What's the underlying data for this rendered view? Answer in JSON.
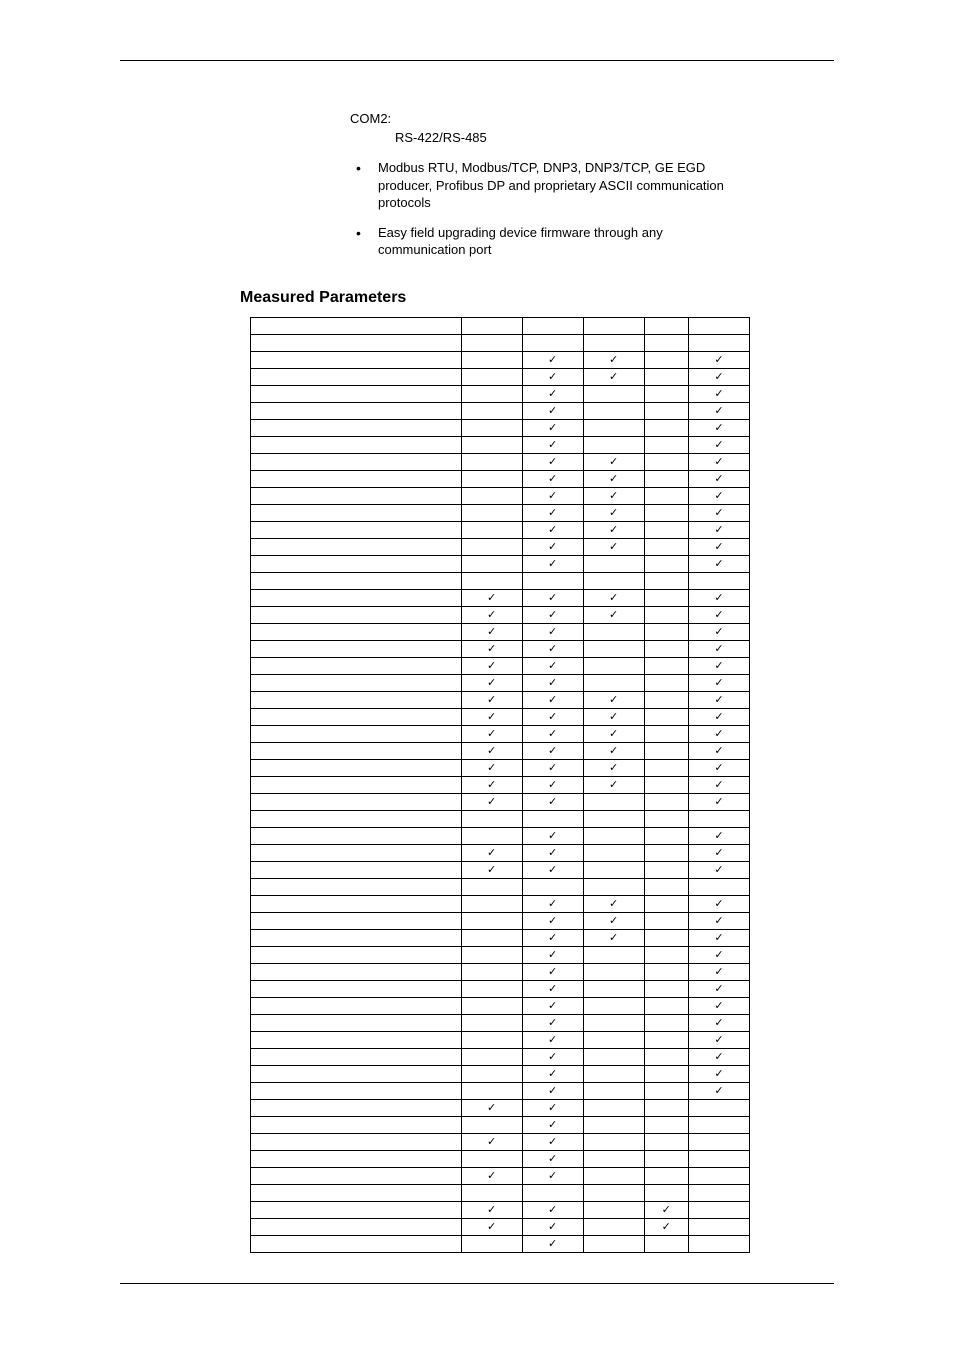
{
  "com": {
    "label": "COM2:",
    "sub": "RS-422/RS-485"
  },
  "bullets": [
    "Modbus RTU, Modbus/TCP, DNP3, DNP3/TCP, GE EGD producer, Profibus DP and proprietary ASCII communication protocols",
    "Easy field upgrading device firmware through any communication port"
  ],
  "sectionTitle": "Measured Parameters",
  "checkGlyph": "✓",
  "table": {
    "columns": 6,
    "rows": [
      [
        0,
        0,
        0,
        0,
        0,
        0
      ],
      [
        0,
        0,
        0,
        0,
        0,
        0
      ],
      [
        0,
        0,
        1,
        1,
        0,
        1
      ],
      [
        0,
        0,
        1,
        1,
        0,
        1
      ],
      [
        0,
        0,
        1,
        0,
        0,
        1
      ],
      [
        0,
        0,
        1,
        0,
        0,
        1
      ],
      [
        0,
        0,
        1,
        0,
        0,
        1
      ],
      [
        0,
        0,
        1,
        0,
        0,
        1
      ],
      [
        0,
        0,
        1,
        1,
        0,
        1
      ],
      [
        0,
        0,
        1,
        1,
        0,
        1
      ],
      [
        0,
        0,
        1,
        1,
        0,
        1
      ],
      [
        0,
        0,
        1,
        1,
        0,
        1
      ],
      [
        0,
        0,
        1,
        1,
        0,
        1
      ],
      [
        0,
        0,
        1,
        1,
        0,
        1
      ],
      [
        0,
        0,
        1,
        0,
        0,
        1
      ],
      [
        0,
        0,
        0,
        0,
        0,
        0
      ],
      [
        0,
        1,
        1,
        1,
        0,
        1
      ],
      [
        0,
        1,
        1,
        1,
        0,
        1
      ],
      [
        0,
        1,
        1,
        0,
        0,
        1
      ],
      [
        0,
        1,
        1,
        0,
        0,
        1
      ],
      [
        0,
        1,
        1,
        0,
        0,
        1
      ],
      [
        0,
        1,
        1,
        0,
        0,
        1
      ],
      [
        0,
        1,
        1,
        1,
        0,
        1
      ],
      [
        0,
        1,
        1,
        1,
        0,
        1
      ],
      [
        0,
        1,
        1,
        1,
        0,
        1
      ],
      [
        0,
        1,
        1,
        1,
        0,
        1
      ],
      [
        0,
        1,
        1,
        1,
        0,
        1
      ],
      [
        0,
        1,
        1,
        1,
        0,
        1
      ],
      [
        0,
        1,
        1,
        0,
        0,
        1
      ],
      [
        0,
        0,
        0,
        0,
        0,
        0
      ],
      [
        0,
        0,
        1,
        0,
        0,
        1
      ],
      [
        0,
        1,
        1,
        0,
        0,
        1
      ],
      [
        0,
        1,
        1,
        0,
        0,
        1
      ],
      [
        0,
        0,
        0,
        0,
        0,
        0
      ],
      [
        0,
        0,
        1,
        1,
        0,
        1
      ],
      [
        0,
        0,
        1,
        1,
        0,
        1
      ],
      [
        0,
        0,
        1,
        1,
        0,
        1
      ],
      [
        0,
        0,
        1,
        0,
        0,
        1
      ],
      [
        0,
        0,
        1,
        0,
        0,
        1
      ],
      [
        0,
        0,
        1,
        0,
        0,
        1
      ],
      [
        0,
        0,
        1,
        0,
        0,
        1
      ],
      [
        0,
        0,
        1,
        0,
        0,
        1
      ],
      [
        0,
        0,
        1,
        0,
        0,
        1
      ],
      [
        0,
        0,
        1,
        0,
        0,
        1
      ],
      [
        0,
        0,
        1,
        0,
        0,
        1
      ],
      [
        0,
        0,
        1,
        0,
        0,
        1
      ],
      [
        0,
        1,
        1,
        0,
        0,
        0
      ],
      [
        0,
        0,
        1,
        0,
        0,
        0
      ],
      [
        0,
        1,
        1,
        0,
        0,
        0
      ],
      [
        0,
        0,
        1,
        0,
        0,
        0
      ],
      [
        0,
        1,
        1,
        0,
        0,
        0
      ],
      [
        0,
        0,
        0,
        0,
        0,
        0
      ],
      [
        0,
        1,
        1,
        0,
        1,
        0
      ],
      [
        0,
        1,
        1,
        0,
        1,
        0
      ],
      [
        0,
        0,
        1,
        0,
        0,
        0
      ]
    ]
  }
}
